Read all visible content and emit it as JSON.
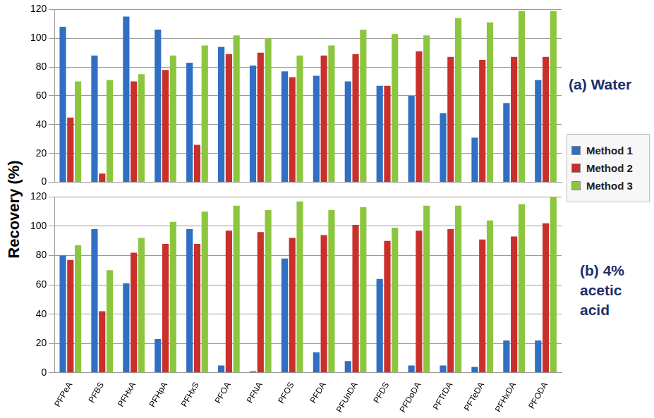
{
  "chart_data": [
    {
      "type": "bar",
      "title": "(a) Water",
      "y_label": "Recovery (%)",
      "categories": [
        "PFPeA",
        "PFBS",
        "PFHxA",
        "PFHpA",
        "PFHxS",
        "PFOA",
        "PFNA",
        "PFOS",
        "PFDA",
        "PFUnDA",
        "PFDS",
        "PFDoDA",
        "PFTrDA",
        "PFTeDA",
        "PFHxDA",
        "PFODA"
      ],
      "series": [
        {
          "name": "Method 1",
          "color": "#2f6fc4",
          "values": [
            108,
            88,
            115,
            106,
            83,
            94,
            81,
            77,
            74,
            70,
            67,
            60,
            48,
            31,
            55,
            71
          ]
        },
        {
          "name": "Method 2",
          "color": "#c9302c",
          "values": [
            45,
            6,
            70,
            78,
            26,
            89,
            90,
            73,
            88,
            89,
            67,
            91,
            87,
            85,
            87,
            87
          ]
        },
        {
          "name": "Method 3",
          "color": "#8cc63f",
          "values": [
            70,
            71,
            75,
            88,
            95,
            102,
            100,
            88,
            95,
            106,
            103,
            102,
            114,
            111,
            119,
            119
          ]
        }
      ],
      "ylim": [
        0,
        120
      ],
      "yticks": [
        0,
        20,
        40,
        60,
        80,
        100,
        120
      ],
      "grid": true,
      "legend": "right",
      "tick_labels": "y"
    },
    {
      "type": "bar",
      "title": "(b) 4% acetic acid",
      "categories": [
        "PFPeA",
        "PFBS",
        "PFHxA",
        "PFHpA",
        "PFHxS",
        "PFOA",
        "PFNA",
        "PFOS",
        "PFDA",
        "PFUnDA",
        "PFDS",
        "PFDoDA",
        "PFTrDA",
        "PFTeDA",
        "PFHxDA",
        "PFODA"
      ],
      "series": [
        {
          "name": "Method 1",
          "color": "#2f6fc4",
          "values": [
            80,
            98,
            61,
            23,
            98,
            5,
            1,
            78,
            14,
            8,
            64,
            5,
            5,
            4,
            22,
            22
          ]
        },
        {
          "name": "Method 2",
          "color": "#c9302c",
          "values": [
            77,
            42,
            82,
            88,
            88,
            97,
            96,
            92,
            94,
            101,
            90,
            97,
            98,
            91,
            93,
            102
          ]
        },
        {
          "name": "Method 3",
          "color": "#8cc63f",
          "values": [
            87,
            70,
            92,
            103,
            110,
            114,
            111,
            117,
            111,
            113,
            99,
            114,
            114,
            104,
            115,
            120
          ]
        }
      ],
      "ylim": [
        0,
        120
      ],
      "yticks": [
        0,
        20,
        40,
        60,
        80,
        100,
        120
      ],
      "grid": true
    }
  ]
}
